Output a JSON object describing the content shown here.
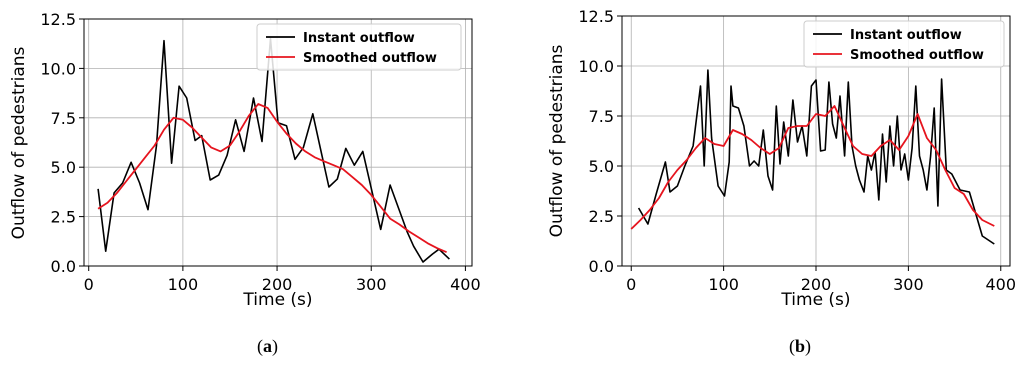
{
  "chart_data": [
    {
      "type": "line",
      "panel_label": "a",
      "xlabel": "Time (s)",
      "ylabel": "Outflow of pedestrians",
      "xlim": [
        -5,
        407
      ],
      "ylim": [
        0,
        12.5
      ],
      "xticks": [
        0,
        100,
        200,
        300,
        400
      ],
      "yticks": [
        "0.0",
        "2.5",
        "5.0",
        "7.5",
        "10.0",
        "12.5"
      ],
      "grid": true,
      "legend": "top-right",
      "series": [
        {
          "name": "Instant outflow",
          "color": "#000000",
          "x": [
            10,
            18,
            27,
            36,
            45,
            54,
            63,
            72,
            80,
            88,
            96,
            104,
            113,
            120,
            129,
            138,
            147,
            156,
            165,
            175,
            184,
            193,
            201,
            210,
            219,
            228,
            238,
            246,
            255,
            264,
            273,
            282,
            291,
            310,
            320,
            338,
            345,
            355,
            365,
            372,
            383
          ],
          "y": [
            3.9,
            0.75,
            3.7,
            4.2,
            5.25,
            4.2,
            2.85,
            6.1,
            11.4,
            5.2,
            9.1,
            8.5,
            6.35,
            6.6,
            4.35,
            4.6,
            5.6,
            7.4,
            5.8,
            8.5,
            6.3,
            11.5,
            7.25,
            7.1,
            5.4,
            6.0,
            7.7,
            5.95,
            4.0,
            4.4,
            5.95,
            5.1,
            5.8,
            1.85,
            4.1,
            1.75,
            1.0,
            0.2,
            0.6,
            0.85,
            0.35
          ]
        },
        {
          "name": "Smoothed outflow",
          "color": "#e6141e",
          "x": [
            10,
            20,
            30,
            40,
            50,
            60,
            70,
            80,
            90,
            100,
            110,
            120,
            130,
            140,
            150,
            160,
            170,
            180,
            190,
            200,
            210,
            220,
            230,
            240,
            250,
            260,
            270,
            280,
            290,
            300,
            310,
            320,
            330,
            340,
            350,
            360,
            370,
            380
          ],
          "y": [
            2.9,
            3.2,
            3.7,
            4.3,
            4.9,
            5.5,
            6.1,
            6.9,
            7.5,
            7.4,
            7.0,
            6.5,
            6.0,
            5.8,
            6.1,
            6.8,
            7.6,
            8.2,
            8.0,
            7.3,
            6.7,
            6.2,
            5.8,
            5.5,
            5.3,
            5.1,
            4.9,
            4.5,
            4.1,
            3.6,
            3.0,
            2.4,
            2.1,
            1.75,
            1.45,
            1.15,
            0.9,
            0.7
          ]
        }
      ]
    },
    {
      "type": "line",
      "panel_label": "b",
      "xlabel": "Time (s)",
      "ylabel": "Outflow of pedestrians",
      "xlim": [
        -10,
        410
      ],
      "ylim": [
        0,
        12.5
      ],
      "xticks": [
        0,
        100,
        200,
        300,
        400
      ],
      "yticks": [
        "0.0",
        "2.5",
        "5.0",
        "7.5",
        "10.0",
        "12.5"
      ],
      "grid": true,
      "legend": "top-right",
      "series": [
        {
          "name": "Instant outflow",
          "color": "#000000",
          "x": [
            8,
            18,
            27,
            37,
            42,
            50,
            58,
            67,
            75,
            79,
            83,
            87,
            94,
            101,
            106,
            108,
            110,
            116,
            122,
            128,
            133,
            138,
            143,
            148,
            153,
            157,
            161,
            165,
            170,
            175,
            180,
            185,
            190,
            195,
            200,
            205,
            210,
            214,
            218,
            222,
            226,
            231,
            235,
            239,
            243,
            247,
            252,
            256,
            260,
            264,
            268,
            272,
            276,
            280,
            284,
            288,
            292,
            296,
            300,
            304,
            308,
            312,
            316,
            320,
            324,
            328,
            332,
            336,
            341,
            347,
            356,
            366,
            380,
            393
          ],
          "y": [
            2.9,
            2.1,
            3.6,
            5.2,
            3.7,
            4.0,
            5.0,
            6.0,
            9.0,
            5.0,
            9.8,
            6.4,
            4.0,
            3.5,
            5.2,
            9.0,
            8.0,
            7.9,
            7.0,
            5.0,
            5.25,
            5.0,
            6.8,
            4.5,
            3.8,
            8.0,
            5.1,
            7.2,
            5.5,
            8.3,
            6.2,
            7.0,
            5.5,
            9.0,
            9.3,
            5.75,
            5.8,
            9.2,
            7.1,
            6.4,
            8.5,
            5.5,
            9.2,
            6.0,
            5.0,
            4.3,
            3.7,
            5.5,
            4.8,
            5.7,
            3.3,
            6.6,
            4.2,
            7.0,
            5.0,
            7.5,
            4.8,
            5.6,
            4.3,
            5.9,
            9.0,
            5.5,
            4.8,
            3.8,
            5.5,
            7.9,
            3.0,
            9.35,
            4.8,
            4.6,
            3.8,
            3.7,
            1.5,
            1.1
          ]
        },
        {
          "name": "Smoothed outflow",
          "color": "#e6141e",
          "x": [
            0,
            10,
            20,
            30,
            40,
            50,
            60,
            70,
            80,
            90,
            100,
            110,
            120,
            130,
            140,
            150,
            160,
            170,
            180,
            190,
            200,
            210,
            220,
            230,
            240,
            250,
            260,
            270,
            280,
            290,
            300,
            310,
            320,
            330,
            340,
            350,
            360,
            370,
            380,
            393
          ],
          "y": [
            1.85,
            2.3,
            2.8,
            3.4,
            4.2,
            4.8,
            5.3,
            5.9,
            6.4,
            6.1,
            6.0,
            6.8,
            6.6,
            6.3,
            5.9,
            5.6,
            5.9,
            6.9,
            7.0,
            7.0,
            7.6,
            7.5,
            8.0,
            7.0,
            6.0,
            5.6,
            5.5,
            6.0,
            6.3,
            5.8,
            6.5,
            7.6,
            6.4,
            5.8,
            4.8,
            3.9,
            3.6,
            2.8,
            2.3,
            2.0
          ]
        }
      ]
    }
  ]
}
